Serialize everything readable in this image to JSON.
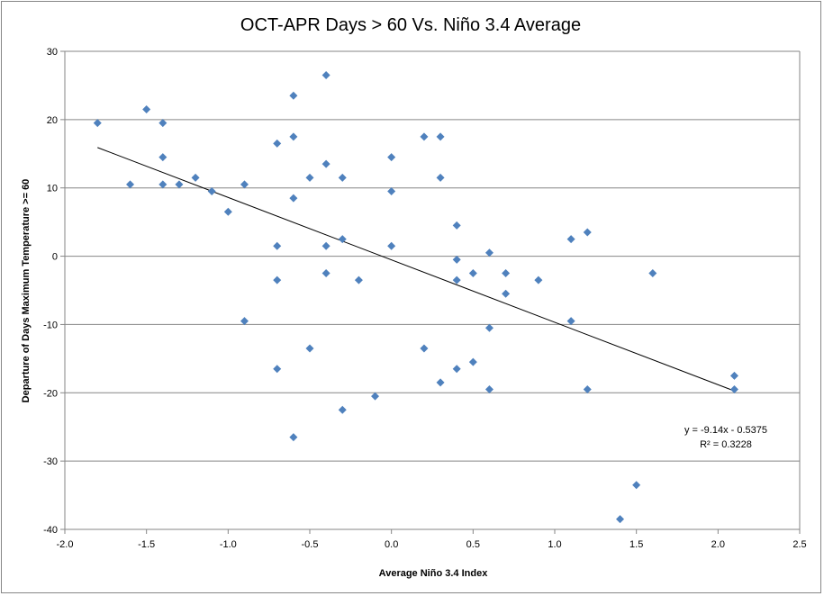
{
  "chart_data": {
    "type": "scatter",
    "title": "OCT-APR Days > 60 Vs. Niño 3.4 Average",
    "xlabel": "Average Niño 3.4 Index",
    "ylabel": "Departure of Days  Maximum Temperature >= 60",
    "xlim": [
      -2.0,
      2.5
    ],
    "ylim": [
      -40,
      30
    ],
    "x_ticks": [
      "-2.0",
      "-1.5",
      "-1.0",
      "-0.5",
      "0.0",
      "0.5",
      "1.0",
      "1.5",
      "2.0",
      "2.5"
    ],
    "y_ticks": [
      "30",
      "20",
      "10",
      "0",
      "-10",
      "-20",
      "-30",
      "-40"
    ],
    "grid": "horizontal",
    "marker_color": "#4F81BD",
    "trendline": {
      "slope": -9.14,
      "intercept": -0.5375,
      "x_range": [
        -1.8,
        2.1
      ],
      "equation_label": "y = -9.14x - 0.5375",
      "r2_label": "R² = 0.3228"
    },
    "points": [
      {
        "x": -1.8,
        "y": 19.5
      },
      {
        "x": -1.6,
        "y": 10.5
      },
      {
        "x": -1.5,
        "y": 21.5
      },
      {
        "x": -1.4,
        "y": 19.5
      },
      {
        "x": -1.4,
        "y": 14.5
      },
      {
        "x": -1.4,
        "y": 10.5
      },
      {
        "x": -1.3,
        "y": 10.5
      },
      {
        "x": -1.2,
        "y": 11.5
      },
      {
        "x": -1.1,
        "y": 9.5
      },
      {
        "x": -1.0,
        "y": 6.5
      },
      {
        "x": -0.9,
        "y": 10.5
      },
      {
        "x": -0.9,
        "y": -9.5
      },
      {
        "x": -0.7,
        "y": 16.5
      },
      {
        "x": -0.7,
        "y": 1.5
      },
      {
        "x": -0.7,
        "y": -3.5
      },
      {
        "x": -0.7,
        "y": -16.5
      },
      {
        "x": -0.6,
        "y": 23.5
      },
      {
        "x": -0.6,
        "y": 17.5
      },
      {
        "x": -0.6,
        "y": 8.5
      },
      {
        "x": -0.6,
        "y": -26.5
      },
      {
        "x": -0.5,
        "y": 11.5
      },
      {
        "x": -0.5,
        "y": -13.5
      },
      {
        "x": -0.4,
        "y": 26.5
      },
      {
        "x": -0.4,
        "y": 13.5
      },
      {
        "x": -0.4,
        "y": 1.5
      },
      {
        "x": -0.4,
        "y": -2.5
      },
      {
        "x": -0.3,
        "y": 11.5
      },
      {
        "x": -0.3,
        "y": 2.5
      },
      {
        "x": -0.3,
        "y": -22.5
      },
      {
        "x": -0.2,
        "y": -3.5
      },
      {
        "x": -0.1,
        "y": -20.5
      },
      {
        "x": 0.0,
        "y": 14.5
      },
      {
        "x": 0.0,
        "y": 9.5
      },
      {
        "x": 0.0,
        "y": 1.5
      },
      {
        "x": 0.2,
        "y": 17.5
      },
      {
        "x": 0.2,
        "y": -13.5
      },
      {
        "x": 0.3,
        "y": 17.5
      },
      {
        "x": 0.3,
        "y": 11.5
      },
      {
        "x": 0.3,
        "y": -18.5
      },
      {
        "x": 0.4,
        "y": 4.5
      },
      {
        "x": 0.4,
        "y": -0.5
      },
      {
        "x": 0.4,
        "y": -3.5
      },
      {
        "x": 0.4,
        "y": -16.5
      },
      {
        "x": 0.5,
        "y": -2.5
      },
      {
        "x": 0.5,
        "y": -15.5
      },
      {
        "x": 0.6,
        "y": 0.5
      },
      {
        "x": 0.6,
        "y": -10.5
      },
      {
        "x": 0.6,
        "y": -19.5
      },
      {
        "x": 0.7,
        "y": -2.5
      },
      {
        "x": 0.7,
        "y": -5.5
      },
      {
        "x": 0.9,
        "y": -3.5
      },
      {
        "x": 1.1,
        "y": 2.5
      },
      {
        "x": 1.1,
        "y": -9.5
      },
      {
        "x": 1.2,
        "y": 3.5
      },
      {
        "x": 1.2,
        "y": -19.5
      },
      {
        "x": 1.4,
        "y": -38.5
      },
      {
        "x": 1.5,
        "y": -33.5
      },
      {
        "x": 1.6,
        "y": -2.5
      },
      {
        "x": 2.1,
        "y": -17.5
      },
      {
        "x": 2.1,
        "y": -19.5
      }
    ]
  }
}
